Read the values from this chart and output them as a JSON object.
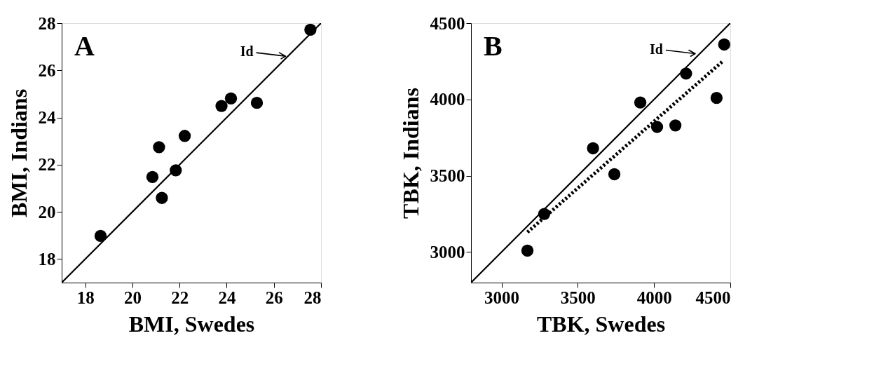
{
  "chart_data": [
    {
      "type": "scatter",
      "xlabel": "BMI, Swedes",
      "ylabel": "BMI, Indians",
      "xlim": [
        17,
        28
      ],
      "ylim": [
        17,
        28
      ],
      "xticks": [
        18,
        20,
        22,
        24,
        26,
        28
      ],
      "yticks": [
        18,
        20,
        22,
        24,
        26,
        28
      ],
      "grid": false,
      "series": [
        {
          "color": "#000000",
          "marker": "circle",
          "x": [
            18.65,
            20.85,
            21.13,
            21.25,
            21.84,
            22.22,
            23.78,
            24.18,
            25.28,
            27.55
          ],
          "values": [
            18.98,
            21.48,
            22.74,
            20.59,
            21.76,
            23.22,
            24.49,
            24.81,
            24.62,
            27.72
          ]
        },
        {
          "type": "line",
          "color": "#000000",
          "line_style": "solid",
          "x": [
            17,
            28
          ],
          "values": [
            17,
            28
          ]
        }
      ],
      "annotations": [
        "A",
        {
          "text": "Id",
          "x": 26.5,
          "y": 26.6
        }
      ]
    },
    {
      "type": "scatter",
      "xlabel": "TBK, Swedes",
      "ylabel": "TBK, Indians",
      "xlim": [
        2800,
        4500
      ],
      "ylim": [
        2800,
        4500
      ],
      "xticks": [
        3000,
        3500,
        4000,
        4500
      ],
      "yticks": [
        3000,
        3500,
        4000,
        4500
      ],
      "grid": false,
      "series": [
        {
          "color": "#000000",
          "marker": "circle",
          "x": [
            3170,
            3280,
            3600,
            3740,
            3910,
            4020,
            4140,
            4210,
            4410,
            4460
          ],
          "values": [
            3010,
            3250,
            3680,
            3510,
            3980,
            3820,
            3830,
            4170,
            4010,
            4360
          ]
        },
        {
          "type": "line",
          "color": "#000000",
          "line_style": "solid",
          "x": [
            2800,
            4500
          ],
          "values": [
            2800,
            4500
          ]
        },
        {
          "type": "line",
          "color": "#000000",
          "line_style": "dotted",
          "x": [
            3170,
            4450
          ],
          "values": [
            3130,
            4250
          ]
        }
      ],
      "annotations": [
        "B",
        {
          "text": "Id",
          "x": 4270,
          "y": 4300
        }
      ]
    }
  ]
}
